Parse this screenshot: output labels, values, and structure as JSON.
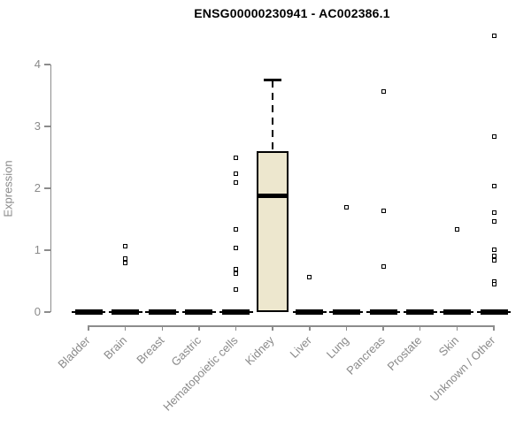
{
  "chart_data": {
    "type": "box",
    "title": "ENSG00000230941 - AC002386.1",
    "xlabel": "",
    "ylabel": "Expression",
    "ylim": [
      0,
      4
    ],
    "yticks": [
      0,
      1,
      2,
      3,
      4
    ],
    "grid": false,
    "legend": "none",
    "categories": [
      "Bladder",
      "Brain",
      "Breast",
      "Gastric",
      "Hematopoietic cells",
      "Kidney",
      "Liver",
      "Lung",
      "Pancreas",
      "Prostate",
      "Skin",
      "Unknown / Other"
    ],
    "boxes": [
      {
        "category": "Bladder",
        "whisker_low": 0,
        "q1": 0,
        "median": 0,
        "q3": 0,
        "whisker_high": 0,
        "outliers": []
      },
      {
        "category": "Brain",
        "whisker_low": 0,
        "q1": 0,
        "median": 0,
        "q3": 0,
        "whisker_high": 0,
        "outliers": [
          1.07,
          0.87,
          0.79
        ]
      },
      {
        "category": "Breast",
        "whisker_low": 0,
        "q1": 0,
        "median": 0,
        "q3": 0,
        "whisker_high": 0,
        "outliers": []
      },
      {
        "category": "Gastric",
        "whisker_low": 0,
        "q1": 0,
        "median": 0,
        "q3": 0,
        "whisker_high": 0,
        "outliers": []
      },
      {
        "category": "Hematopoietic cells",
        "whisker_low": 0,
        "q1": 0,
        "median": 0,
        "q3": 0,
        "whisker_high": 0,
        "outliers": [
          2.5,
          2.23,
          2.09,
          1.33,
          1.04,
          0.7,
          0.62,
          0.36
        ]
      },
      {
        "category": "Kidney",
        "whisker_low": 0,
        "q1": 0,
        "median": 1.88,
        "q3": 2.6,
        "whisker_high": 3.75,
        "outliers": []
      },
      {
        "category": "Liver",
        "whisker_low": 0,
        "q1": 0,
        "median": 0,
        "q3": 0,
        "whisker_high": 0,
        "outliers": [
          0.57
        ]
      },
      {
        "category": "Lung",
        "whisker_low": 0,
        "q1": 0,
        "median": 0,
        "q3": 0,
        "whisker_high": 0,
        "outliers": [
          1.7
        ]
      },
      {
        "category": "Pancreas",
        "whisker_low": 0,
        "q1": 0,
        "median": 0,
        "q3": 0,
        "whisker_high": 0,
        "outliers": [
          3.56,
          1.64,
          0.74
        ]
      },
      {
        "category": "Prostate",
        "whisker_low": 0,
        "q1": 0,
        "median": 0,
        "q3": 0,
        "whisker_high": 0,
        "outliers": []
      },
      {
        "category": "Skin",
        "whisker_low": 0,
        "q1": 0,
        "median": 0,
        "q3": 0,
        "whisker_high": 0,
        "outliers": [
          1.33
        ]
      },
      {
        "category": "Unknown / Other",
        "whisker_low": 0,
        "q1": 0,
        "median": 0,
        "q3": 0,
        "whisker_high": 0,
        "outliers": [
          4.46,
          2.83,
          2.04,
          1.61,
          1.46,
          1.01,
          0.91,
          0.83,
          0.49,
          0.45
        ]
      }
    ],
    "colors": {
      "background": "#FFFFFF",
      "title_text": "#000000",
      "axis": "#8C8C8C",
      "label_text": "#8A8A8A",
      "box_fill": "#EDE7CE",
      "box_border": "#000000",
      "median_line": "#000000",
      "outlier_border": "#000000",
      "outlier_fill": "#FFFFFF"
    }
  }
}
